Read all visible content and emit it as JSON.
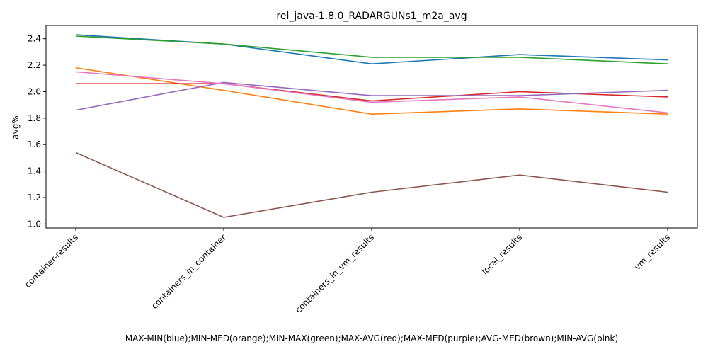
{
  "chart_data": {
    "type": "line",
    "title": "rel_java-1.8.0_RADARGUNs1_m2a_avg",
    "xlabel": "MAX-MIN(blue);MIN-MED(orange);MIN-MAX(green);MAX-AVG(red);MAX-MED(purple);AVG-MED(brown);MIN-AVG(pink)",
    "ylabel": "avg%",
    "categories": [
      "container-results",
      "containers_in_container",
      "containers_in_vm_results",
      "local_results",
      "vm_results"
    ],
    "ylim": [
      0.97,
      2.5
    ],
    "yticks": [
      "1.0",
      "1.2",
      "1.4",
      "1.6",
      "1.8",
      "2.0",
      "2.2",
      "2.4"
    ],
    "grid": false,
    "series": [
      {
        "color": "#1f77b4",
        "values": [
          2.43,
          2.36,
          2.21,
          2.28,
          2.24
        ]
      },
      {
        "color": "#ff7f0e",
        "values": [
          2.18,
          2.01,
          1.83,
          1.87,
          1.83
        ]
      },
      {
        "color": "#2ca02c",
        "values": [
          2.42,
          2.36,
          2.26,
          2.26,
          2.21
        ]
      },
      {
        "color": "#d62728",
        "values": [
          2.06,
          2.06,
          1.93,
          2.0,
          1.96
        ]
      },
      {
        "color": "#9467bd",
        "values": [
          1.86,
          2.07,
          1.97,
          1.97,
          2.01
        ]
      },
      {
        "color": "#8c564b",
        "values": [
          1.54,
          1.05,
          1.24,
          1.37,
          1.24
        ]
      },
      {
        "color": "#e377c2",
        "values": [
          2.15,
          2.06,
          1.92,
          1.96,
          1.84
        ]
      }
    ]
  }
}
